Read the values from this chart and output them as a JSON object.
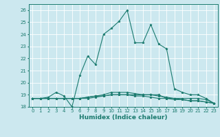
{
  "title": "",
  "xlabel": "Humidex (Indice chaleur)",
  "xlim": [
    -0.5,
    23.5
  ],
  "ylim": [
    18,
    26.5
  ],
  "yticks": [
    18,
    19,
    20,
    21,
    22,
    23,
    24,
    25,
    26
  ],
  "xticks": [
    0,
    1,
    2,
    3,
    4,
    5,
    6,
    7,
    8,
    9,
    10,
    11,
    12,
    13,
    14,
    15,
    16,
    17,
    18,
    19,
    20,
    21,
    22,
    23
  ],
  "bg_color": "#cce8ef",
  "grid_color": "#ffffff",
  "line_color": "#1a7a6e",
  "lines": [
    [
      18.7,
      18.7,
      18.8,
      19.2,
      18.9,
      18.0,
      20.6,
      22.2,
      21.5,
      24.0,
      24.5,
      25.1,
      26.0,
      23.3,
      23.3,
      24.8,
      23.2,
      22.8,
      19.5,
      19.2,
      19.0,
      19.0,
      18.7,
      18.3
    ],
    [
      18.7,
      18.7,
      18.7,
      18.7,
      18.7,
      18.7,
      18.7,
      18.7,
      18.8,
      18.9,
      19.0,
      19.0,
      19.0,
      19.0,
      19.0,
      19.0,
      19.0,
      18.7,
      18.7,
      18.7,
      18.7,
      18.7,
      18.6,
      18.3
    ],
    [
      18.7,
      18.7,
      18.7,
      18.7,
      18.7,
      18.7,
      18.7,
      18.8,
      18.9,
      19.0,
      19.2,
      19.2,
      19.2,
      19.1,
      19.0,
      19.0,
      18.9,
      18.8,
      18.7,
      18.6,
      18.5,
      18.5,
      18.4,
      18.3
    ],
    [
      18.7,
      18.7,
      18.7,
      18.7,
      18.7,
      18.7,
      18.7,
      18.8,
      18.9,
      18.9,
      19.0,
      19.0,
      19.0,
      18.9,
      18.9,
      18.8,
      18.7,
      18.7,
      18.6,
      18.6,
      18.5,
      18.5,
      18.4,
      18.3
    ]
  ],
  "xlabel_fontsize": 6.5,
  "tick_fontsize": 5.0,
  "linewidth": 0.8,
  "markersize": 2.5
}
